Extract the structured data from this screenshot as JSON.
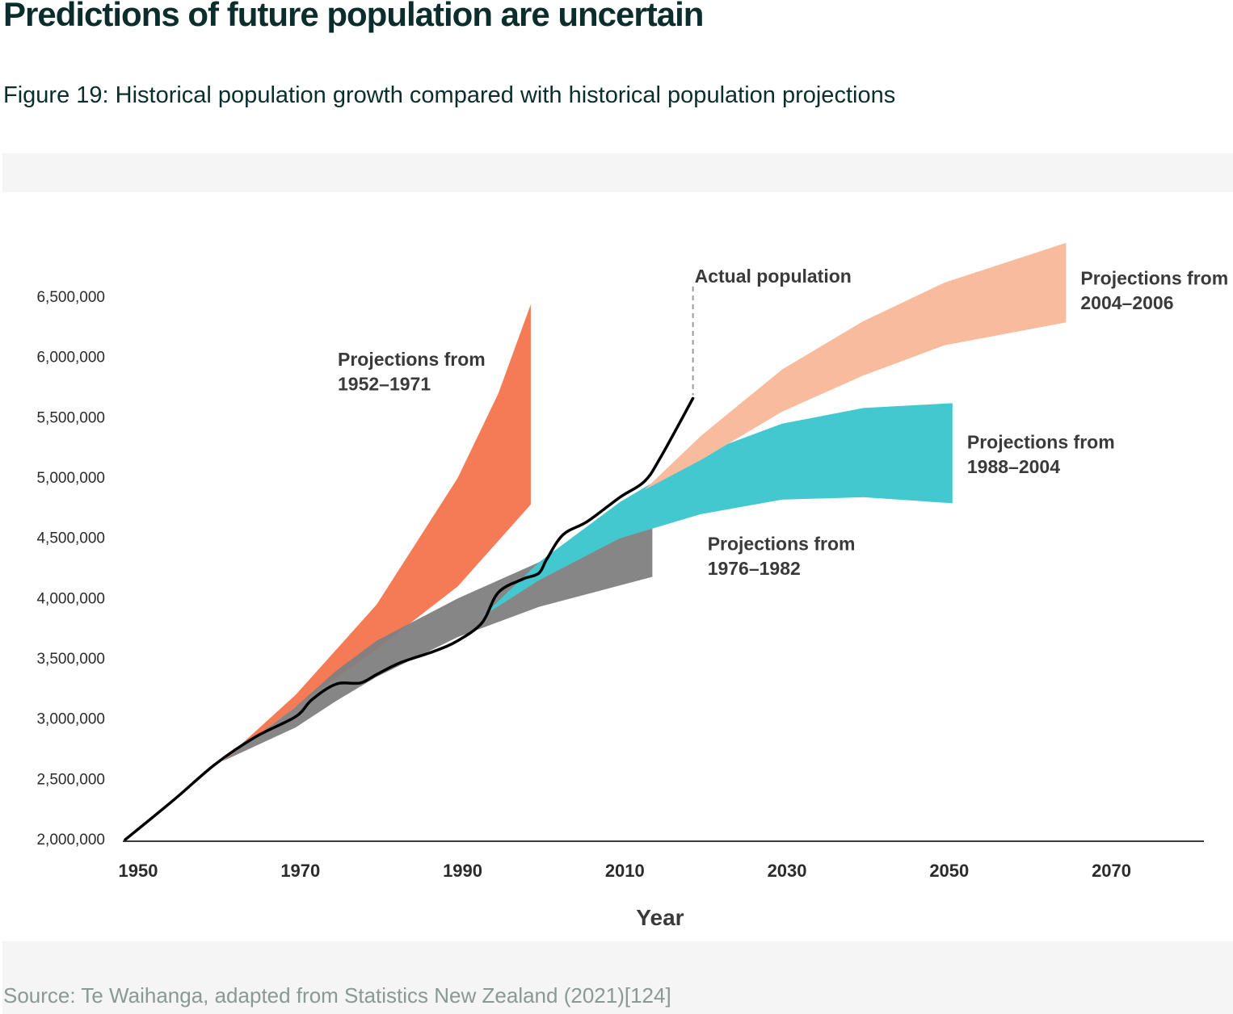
{
  "page": {
    "heading": "Predictions of future population are uncertain",
    "caption": "Figure 19: Historical population growth compared with historical population projections",
    "source": "Source: Te Waihanga, adapted from Statistics New Zealand (2021)[124]"
  },
  "chart_data": {
    "type": "area",
    "xlabel": "Year",
    "ylabel": "",
    "xlim": [
      1949,
      2082
    ],
    "ylim": [
      2000000,
      6500000
    ],
    "x_ticks": [
      1950,
      1970,
      1990,
      2010,
      2030,
      2050,
      2070
    ],
    "y_ticks": [
      2000000,
      2500000,
      3000000,
      3500000,
      4000000,
      4500000,
      5000000,
      5500000,
      6000000,
      6500000
    ],
    "y_tick_labels": [
      "2,000,000",
      "2,500,000",
      "3,000,000",
      "3,500,000",
      "4,000,000",
      "4,500,000",
      "5,000,000",
      "5,500,000",
      "6,000,000",
      "6,500,000"
    ],
    "colors": {
      "proj_1952_1971": "#f47b56",
      "proj_1976_1982": "#7f7f7f",
      "proj_1988_2004": "#44c8cf",
      "proj_2004_2006": "#f9bb9d",
      "actual": "#000000"
    },
    "annotations": {
      "actual_label": "Actual population",
      "proj_1952_1971": [
        "Projections from",
        "1952–1971"
      ],
      "proj_1976_1982": [
        "Projections from",
        "1976–1982"
      ],
      "proj_1988_2004": [
        "Projections from",
        "1988–2004"
      ],
      "proj_2004_2006": [
        "Projections from",
        "2004–2006"
      ]
    },
    "bands": [
      {
        "key": "proj_1952_1971",
        "upper": [
          [
            1961,
            2650000
          ],
          [
            1970,
            3200000
          ],
          [
            1980,
            3950000
          ],
          [
            1990,
            5000000
          ],
          [
            1995,
            5700000
          ],
          [
            1999,
            6440000
          ]
        ],
        "lower": [
          [
            1961,
            2650000
          ],
          [
            1970,
            3100000
          ],
          [
            1980,
            3580000
          ],
          [
            1990,
            4100000
          ],
          [
            1999,
            4780000
          ]
        ]
      },
      {
        "key": "proj_1976_1982",
        "upper": [
          [
            1961,
            2650000
          ],
          [
            1970,
            3100000
          ],
          [
            1975,
            3400000
          ],
          [
            1980,
            3650000
          ],
          [
            1990,
            4000000
          ],
          [
            2000,
            4300000
          ],
          [
            2014,
            4650000
          ]
        ],
        "lower": [
          [
            1961,
            2650000
          ],
          [
            1970,
            2930000
          ],
          [
            1975,
            3150000
          ],
          [
            1980,
            3350000
          ],
          [
            1990,
            3680000
          ],
          [
            2000,
            3930000
          ],
          [
            2014,
            4180000
          ]
        ]
      },
      {
        "key": "proj_1988_2004",
        "upper": [
          [
            1993,
            3850000
          ],
          [
            2000,
            4300000
          ],
          [
            2010,
            4800000
          ],
          [
            2020,
            5200000
          ],
          [
            2030,
            5450000
          ],
          [
            2040,
            5580000
          ],
          [
            2051,
            5620000
          ]
        ],
        "lower": [
          [
            1993,
            3850000
          ],
          [
            2000,
            4150000
          ],
          [
            2010,
            4500000
          ],
          [
            2020,
            4700000
          ],
          [
            2030,
            4820000
          ],
          [
            2040,
            4840000
          ],
          [
            2051,
            4790000
          ]
        ]
      },
      {
        "key": "proj_2004_2006",
        "upper": [
          [
            2013,
            4900000
          ],
          [
            2020,
            5350000
          ],
          [
            2030,
            5900000
          ],
          [
            2040,
            6300000
          ],
          [
            2050,
            6620000
          ],
          [
            2065,
            6950000
          ]
        ],
        "lower": [
          [
            2013,
            4900000
          ],
          [
            2020,
            5150000
          ],
          [
            2030,
            5550000
          ],
          [
            2040,
            5850000
          ],
          [
            2050,
            6100000
          ],
          [
            2065,
            6290000
          ]
        ]
      }
    ],
    "actual": {
      "x": [
        1949,
        1955,
        1960,
        1965,
        1970,
        1972,
        1975,
        1978,
        1980,
        1983,
        1987,
        1990,
        1993,
        1995,
        1998,
        2000,
        2001,
        2003,
        2006,
        2010,
        2013,
        2015,
        2019
      ],
      "y": [
        2000000,
        2330000,
        2620000,
        2850000,
        3020000,
        3160000,
        3290000,
        3300000,
        3370000,
        3470000,
        3560000,
        3650000,
        3800000,
        4050000,
        4160000,
        4210000,
        4330000,
        4530000,
        4640000,
        4840000,
        4970000,
        5170000,
        5660000
      ]
    },
    "grid": false,
    "legend": "none"
  }
}
